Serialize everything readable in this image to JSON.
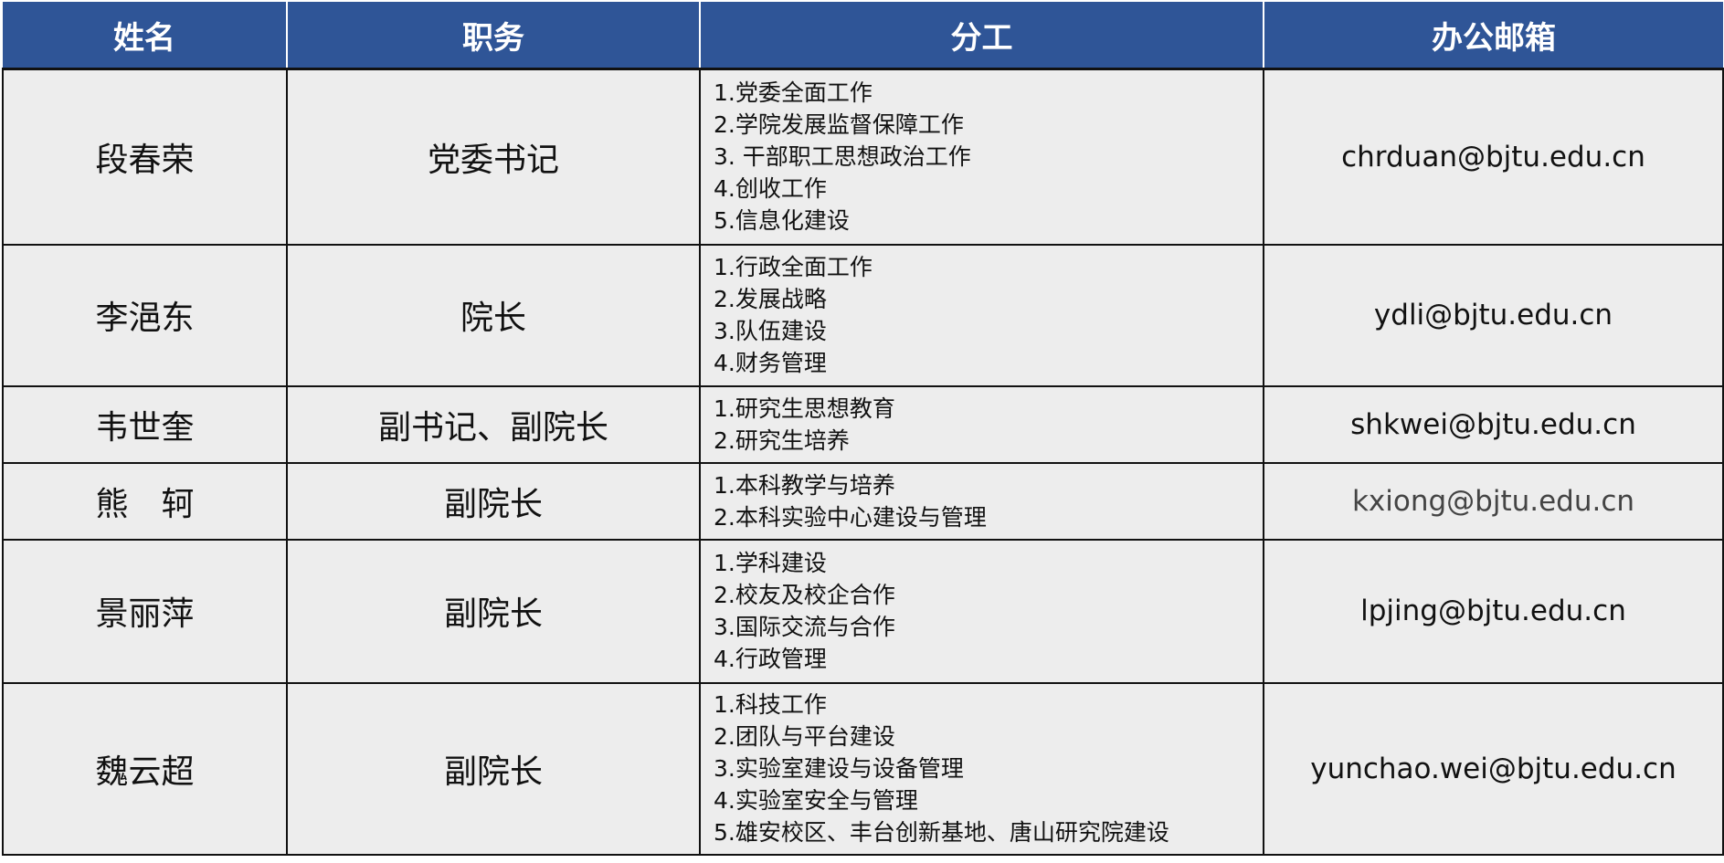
{
  "header": {
    "name": "姓名",
    "position": "职务",
    "duties": "分工",
    "email": "办公邮箱"
  },
  "colors": {
    "header_bg": "#2F5597",
    "cell_bg": "#EDEDED"
  },
  "rows": [
    {
      "name": "段春荣",
      "position": "党委书记",
      "duties": [
        "1.党委全面工作",
        "2.学院发展监督保障工作",
        "3. 干部职工思想政治工作",
        "4.创收工作",
        "5.信息化建设"
      ],
      "email": "chrduan@bjtu.edu.cn"
    },
    {
      "name": "李浥东",
      "position": "院长",
      "duties": [
        "1.行政全面工作",
        "2.发展战略",
        "3.队伍建设",
        "4.财务管理"
      ],
      "email": "ydli@bjtu.edu.cn"
    },
    {
      "name": "韦世奎",
      "position": "副书记、副院长",
      "duties": [
        "1.研究生思想教育",
        "2.研究生培养"
      ],
      "email": "shkwei@bjtu.edu.cn"
    },
    {
      "name": "熊　轲",
      "position": "副院长",
      "duties": [
        "1.本科教学与培养",
        "2.本科实验中心建设与管理"
      ],
      "email": "kxiong@bjtu.edu.cn"
    },
    {
      "name": "景丽萍",
      "position": "副院长",
      "duties": [
        "1.学科建设",
        "2.校友及校企合作",
        "3.国际交流与合作",
        "4.行政管理"
      ],
      "email": "lpjing@bjtu.edu.cn"
    },
    {
      "name": "魏云超",
      "position": "副院长",
      "duties": [
        "1.科技工作",
        "2.团队与平台建设",
        "3.实验室建设与设备管理",
        "4.实验室安全与管理",
        "5.雄安校区、丰台创新基地、唐山研究院建设"
      ],
      "email": "yunchao.wei@bjtu.edu.cn"
    }
  ]
}
